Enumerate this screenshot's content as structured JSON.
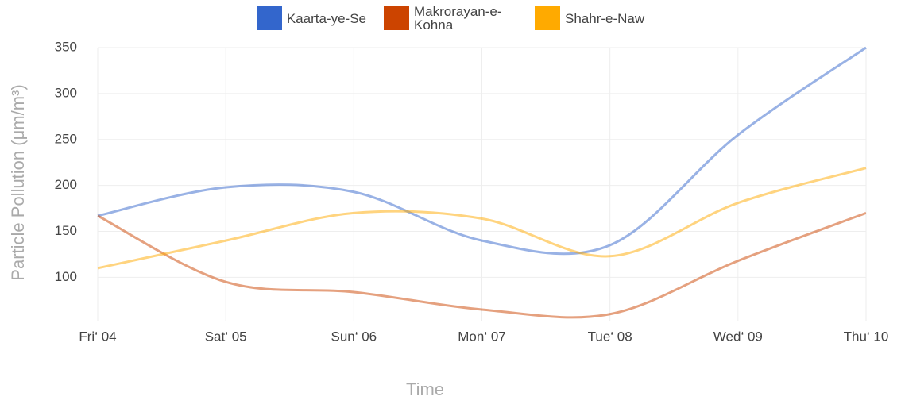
{
  "chart_data": {
    "type": "line",
    "x_label": "Time",
    "y_label": "Particle Pollution (μm/m³)",
    "categories": [
      "Fri‘ 04",
      "Sat‘ 05",
      "Sun‘ 06",
      "Mon‘ 07",
      "Tue‘ 08",
      "Wed‘ 09",
      "Thu‘ 10"
    ],
    "series": [
      {
        "name": "Kaarta-ye-Se",
        "color": "#3366cc",
        "values": [
          167,
          198,
          193,
          140,
          135,
          255,
          350
        ]
      },
      {
        "name": "Makrorayan-e-Kohna",
        "color": "#cc4400",
        "values": [
          167,
          95,
          84,
          65,
          60,
          118,
          170
        ]
      },
      {
        "name": "Shahr-e-Naw",
        "color": "#ffaa00",
        "values": [
          110,
          140,
          170,
          164,
          123,
          181,
          219
        ]
      }
    ],
    "ylim": [
      52,
      350
    ],
    "yticks": [
      100,
      150,
      200,
      250,
      300,
      350
    ],
    "grid": true
  }
}
